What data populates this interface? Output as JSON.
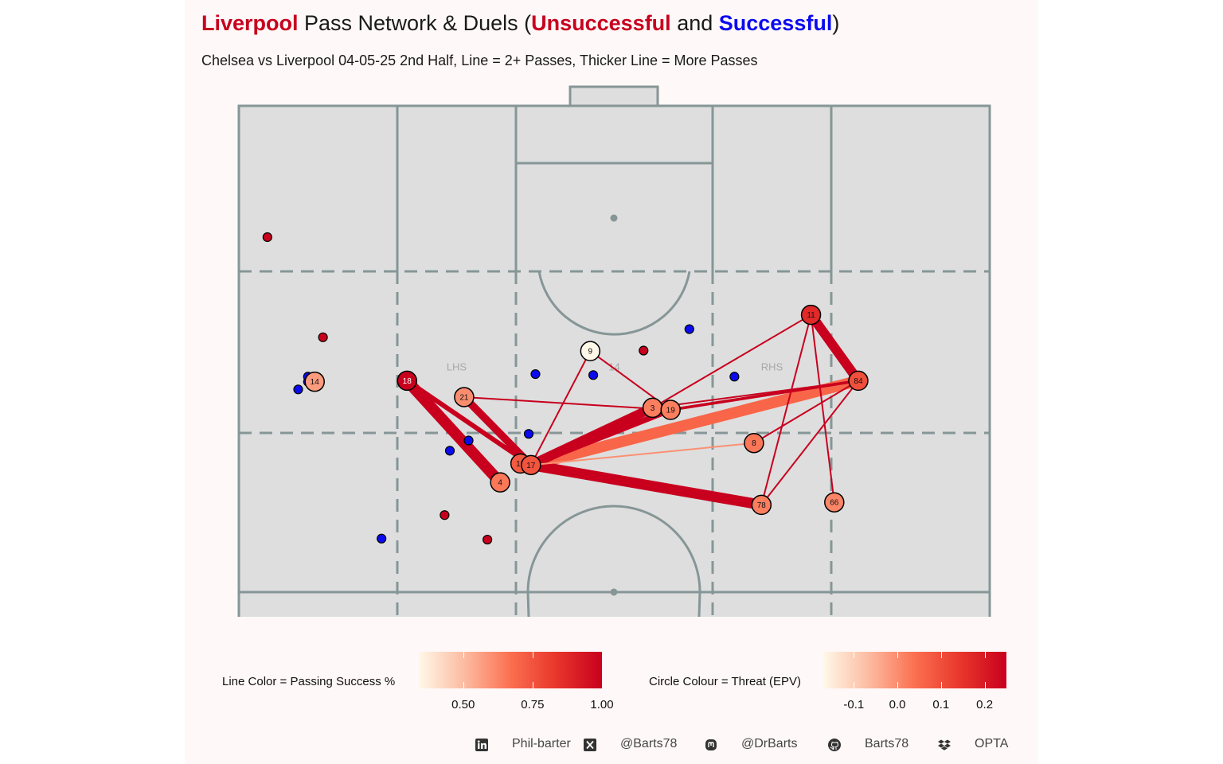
{
  "title": {
    "part1": "Liverpool",
    "part2": " Pass Network & Duels (",
    "part3": "Unsuccessful",
    "part4": " and ",
    "part5": "Successful",
    "part6": ")"
  },
  "subtitle": "Chelsea vs Liverpool 04-05-25 2nd Half, Line = 2+ Passes, Thicker Line = More Passes",
  "colors": {
    "unsuccessful": "#c8001e",
    "successful": "#0b0bf0",
    "pitch_fill": "#dedede",
    "pitch_line": "#869696"
  },
  "legends": {
    "line": {
      "label": "Line Color = Passing Success %",
      "ticks": [
        "0.50",
        "0.75",
        "1.00"
      ],
      "tick_values": [
        0.5,
        0.75,
        1.0
      ],
      "range": [
        0.34,
        1.0
      ]
    },
    "circle": {
      "label": "Circle Colour = Threat (EPV)",
      "ticks": [
        "-0.1",
        "0.0",
        "0.1",
        "0.2"
      ],
      "tick_values": [
        -0.1,
        0.0,
        0.1,
        0.2
      ],
      "range": [
        -0.17,
        0.25
      ]
    }
  },
  "footer": {
    "linkedin": "Phil-barter",
    "x": "@Barts78",
    "mastodon": "@DrBarts",
    "github": "Barts78",
    "source": "OPTA"
  },
  "chart_data": {
    "type": "pass-network",
    "axes": {
      "x_range": [
        0,
        100
      ],
      "y_range": [
        0,
        100
      ]
    },
    "zone_labels": [
      {
        "text": "LHS",
        "x": 29,
        "y": 49
      },
      {
        "text": "14",
        "x": 50,
        "y": 49
      },
      {
        "text": "RHS",
        "x": 71,
        "y": 49
      }
    ],
    "players": [
      {
        "id": "14",
        "x": 10.1,
        "y": 46.0,
        "epv": -0.02
      },
      {
        "id": "18",
        "x": 22.4,
        "y": 46.2,
        "epv": 0.26
      },
      {
        "id": "21",
        "x": 30.0,
        "y": 43.0,
        "epv": 0.0
      },
      {
        "id": "9",
        "x": 46.8,
        "y": 52.0,
        "epv": -0.17
      },
      {
        "id": "3",
        "x": 55.1,
        "y": 40.9,
        "epv": 0.02
      },
      {
        "id": "19",
        "x": 57.5,
        "y": 40.5,
        "epv": 0.02
      },
      {
        "id": "11",
        "x": 76.2,
        "y": 59.1,
        "epv": 0.17
      },
      {
        "id": "84",
        "x": 82.5,
        "y": 46.2,
        "epv": 0.1
      },
      {
        "id": "8",
        "x": 68.6,
        "y": 34.0,
        "epv": 0.03
      },
      {
        "id": "10",
        "x": 37.5,
        "y": 30.0,
        "epv": 0.08
      },
      {
        "id": "17",
        "x": 38.9,
        "y": 29.7,
        "epv": 0.09
      },
      {
        "id": "4",
        "x": 34.8,
        "y": 26.3,
        "epv": 0.03
      },
      {
        "id": "78",
        "x": 69.6,
        "y": 21.9,
        "epv": 0.02
      },
      {
        "id": "66",
        "x": 79.3,
        "y": 22.4,
        "epv": 0.01
      }
    ],
    "links": [
      {
        "from": "18",
        "to": "4",
        "passes": 12,
        "success": 1.0
      },
      {
        "from": "18",
        "to": "17",
        "passes": 5,
        "success": 1.0
      },
      {
        "from": "21",
        "to": "17",
        "passes": 8,
        "success": 1.0
      },
      {
        "from": "21",
        "to": "19",
        "passes": 2,
        "success": 1.0
      },
      {
        "from": "17",
        "to": "78",
        "passes": 11,
        "success": 1.0
      },
      {
        "from": "17",
        "to": "3",
        "passes": 10,
        "success": 1.0
      },
      {
        "from": "17",
        "to": "19",
        "passes": 6,
        "success": 1.0
      },
      {
        "from": "17",
        "to": "84",
        "passes": 12,
        "success": 0.7
      },
      {
        "from": "17",
        "to": "8",
        "passes": 2,
        "success": 0.6
      },
      {
        "from": "17",
        "to": "9",
        "passes": 2,
        "success": 1.0
      },
      {
        "from": "9",
        "to": "19",
        "passes": 2,
        "success": 1.0
      },
      {
        "from": "11",
        "to": "84",
        "passes": 10,
        "success": 1.0
      },
      {
        "from": "11",
        "to": "3",
        "passes": 2,
        "success": 1.0
      },
      {
        "from": "11",
        "to": "66",
        "passes": 2,
        "success": 1.0
      },
      {
        "from": "11",
        "to": "78",
        "passes": 2,
        "success": 1.0
      },
      {
        "from": "84",
        "to": "3",
        "passes": 2,
        "success": 1.0
      },
      {
        "from": "84",
        "to": "19",
        "passes": 3,
        "success": 1.0
      },
      {
        "from": "84",
        "to": "8",
        "passes": 2,
        "success": 1.0
      },
      {
        "from": "84",
        "to": "78",
        "passes": 2,
        "success": 1.0
      }
    ],
    "duels": [
      {
        "x": 3.8,
        "y": 74.3,
        "outcome": "Unsuccessful"
      },
      {
        "x": 11.2,
        "y": 54.7,
        "outcome": "Unsuccessful"
      },
      {
        "x": 9.2,
        "y": 46.0,
        "outcome": "Successful"
      },
      {
        "x": 7.9,
        "y": 44.5,
        "outcome": "Successful"
      },
      {
        "x": 9.2,
        "y": 47.0,
        "outcome": "Successful"
      },
      {
        "x": 47.1,
        "y": 52.0,
        "outcome": "Unsuccessful"
      },
      {
        "x": 53.9,
        "y": 52.1,
        "outcome": "Unsuccessful"
      },
      {
        "x": 60.0,
        "y": 56.3,
        "outcome": "Successful"
      },
      {
        "x": 39.5,
        "y": 47.5,
        "outcome": "Successful"
      },
      {
        "x": 47.2,
        "y": 47.3,
        "outcome": "Successful"
      },
      {
        "x": 66.0,
        "y": 47.0,
        "outcome": "Successful"
      },
      {
        "x": 30.6,
        "y": 34.5,
        "outcome": "Successful"
      },
      {
        "x": 28.1,
        "y": 32.5,
        "outcome": "Successful"
      },
      {
        "x": 38.6,
        "y": 35.8,
        "outcome": "Successful"
      },
      {
        "x": 27.4,
        "y": 19.9,
        "outcome": "Unsuccessful"
      },
      {
        "x": 33.1,
        "y": 15.1,
        "outcome": "Unsuccessful"
      },
      {
        "x": 19.0,
        "y": 15.3,
        "outcome": "Successful"
      }
    ]
  }
}
